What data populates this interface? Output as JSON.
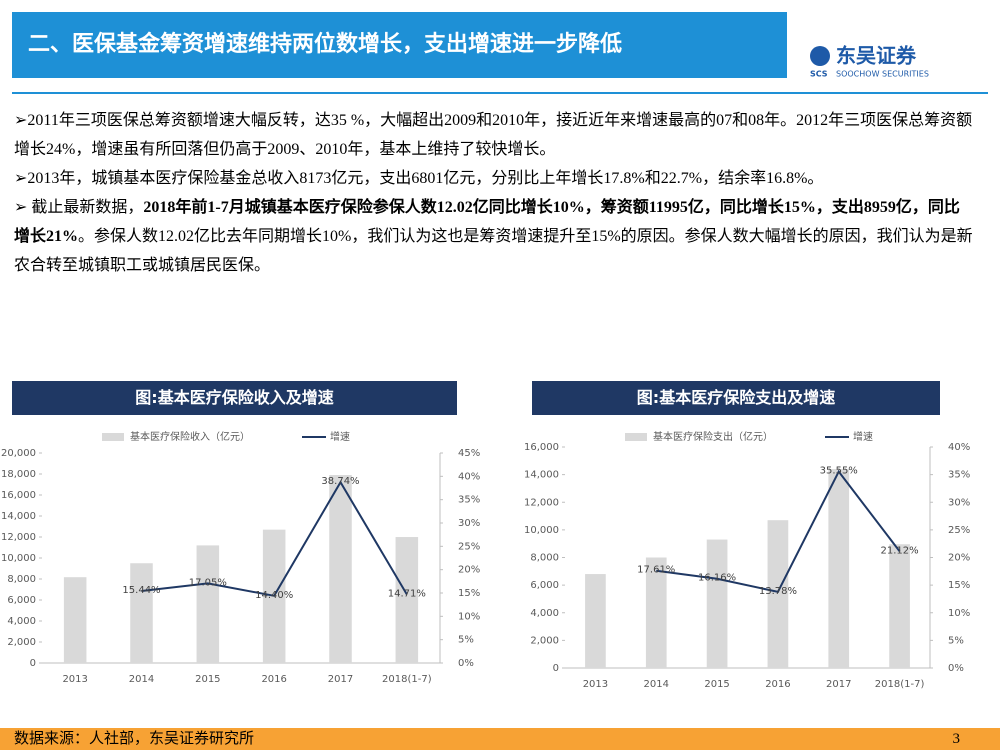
{
  "header": {
    "title": "二、医保基金筹资增速维持两位数增长，支出增速进一步降低",
    "logo": "东吴证券",
    "logo_en": "SOOCHOW SECURITIES",
    "logo_mark": "SCS"
  },
  "paragraphs": [
    [
      {
        "text": "➢2011年三项医保总筹资额增速大幅反转，达35 %，大幅超出2009和2010年，接近近年来增速最高的07和08年。2012年三项医保总筹资额增长24%，增速虽有所回落但仍高于2009、2010年，基本上维持了较快增长。",
        "bold": false
      }
    ],
    [
      {
        "text": "➢2013年，城镇基本医疗保险基金总收入8173亿元，支出6801亿元，分别比上年增长17.8%和22.7%，结余率16.8%。",
        "bold": false
      }
    ],
    [
      {
        "text": "➢ 截止最新数据，",
        "bold": false
      },
      {
        "text": "2018年前1-7月城镇基本医疗保险参保人数12.02亿同比增长10%，筹资额11995亿，同比增长15%，支出8959亿，同比增长21%",
        "bold": true
      },
      {
        "text": "。参保人数12.02亿比去年同期增长10%，我们认为这也是筹资增速提升至15%的原因。参保人数大幅增长的原因，我们认为是新农合转至城镇职工或城镇居民医保。",
        "bold": false
      }
    ]
  ],
  "chart_data": [
    {
      "type": "bar",
      "title": "图:基本医疗保险收入及增速",
      "categories": [
        "2013",
        "2014",
        "2015",
        "2016",
        "2017",
        "2018(1-7)"
      ],
      "series": [
        {
          "name": "基本医疗保险收入（亿元）",
          "color": "#d9d9d9",
          "values": [
            8173,
            9500,
            11200,
            12700,
            17900,
            11995
          ]
        },
        {
          "name": "增速",
          "color": "#1f3864",
          "type": "line",
          "axis": "y2",
          "values": [
            null,
            15.44,
            17.05,
            14.4,
            38.74,
            14.71
          ],
          "value_labels": [
            null,
            "15.44%",
            "17.05%",
            "14.40%",
            "38.74%",
            "14.71%"
          ]
        }
      ],
      "ylim": [
        0,
        20000
      ],
      "yticks": [
        0,
        {
          "value": 2000,
          "label": "2,000"
        },
        {
          "value": 4000,
          "label": "4,000"
        },
        {
          "value": 6000,
          "label": "6,000"
        },
        {
          "value": 8000,
          "label": "8,000"
        },
        {
          "value": 10000,
          "label": "10,000"
        },
        {
          "value": 12000,
          "label": "12,000"
        },
        {
          "value": 14000,
          "label": "14,000"
        },
        {
          "value": 16000,
          "label": "16,000"
        },
        {
          "value": 18000,
          "label": "18,000"
        },
        {
          "value": 20000,
          "label": "20,000"
        }
      ],
      "y2lim": [
        0,
        45
      ],
      "y2ticks": [
        {
          "value": 0,
          "label": "0%"
        },
        {
          "value": 5,
          "label": "5%"
        },
        {
          "value": 10,
          "label": "10%"
        },
        {
          "value": 15,
          "label": "15%"
        },
        {
          "value": 20,
          "label": "20%"
        },
        {
          "value": 25,
          "label": "25%"
        },
        {
          "value": 30,
          "label": "30%"
        },
        {
          "value": 35,
          "label": "35%"
        },
        {
          "value": 40,
          "label": "40%"
        },
        {
          "value": 45,
          "label": "45%"
        }
      ]
    },
    {
      "type": "bar",
      "title": "图:基本医疗保险支出及增速",
      "categories": [
        "2013",
        "2014",
        "2015",
        "2016",
        "2017",
        "2018(1-7)"
      ],
      "series": [
        {
          "name": "基本医疗保险支出（亿元）",
          "color": "#d9d9d9",
          "values": [
            6801,
            8000,
            9300,
            10700,
            14400,
            8959
          ]
        },
        {
          "name": "增速",
          "color": "#1f3864",
          "type": "line",
          "axis": "y2",
          "values": [
            null,
            17.61,
            16.16,
            13.78,
            35.55,
            21.12
          ],
          "value_labels": [
            null,
            "17.61%",
            "16.16%",
            "13.78%",
            "35.55%",
            "21.12%"
          ]
        }
      ],
      "ylim": [
        0,
        16000
      ],
      "yticks": [
        0,
        {
          "value": 2000,
          "label": "2,000"
        },
        {
          "value": 4000,
          "label": "4,000"
        },
        {
          "value": 6000,
          "label": "6,000"
        },
        {
          "value": 8000,
          "label": "8,000"
        },
        {
          "value": 10000,
          "label": "10,000"
        },
        {
          "value": 12000,
          "label": "12,000"
        },
        {
          "value": 14000,
          "label": "14,000"
        },
        {
          "value": 16000,
          "label": "16,000"
        }
      ],
      "y2lim": [
        0,
        40
      ],
      "y2ticks": [
        {
          "value": 0,
          "label": "0%"
        },
        {
          "value": 5,
          "label": "5%"
        },
        {
          "value": 10,
          "label": "10%"
        },
        {
          "value": 15,
          "label": "15%"
        },
        {
          "value": 20,
          "label": "20%"
        },
        {
          "value": 25,
          "label": "25%"
        },
        {
          "value": 30,
          "label": "30%"
        },
        {
          "value": 35,
          "label": "35%"
        },
        {
          "value": 40,
          "label": "40%"
        }
      ]
    }
  ],
  "footer": {
    "source": "数据来源：人社部，东吴证券研究所",
    "page": "3"
  }
}
